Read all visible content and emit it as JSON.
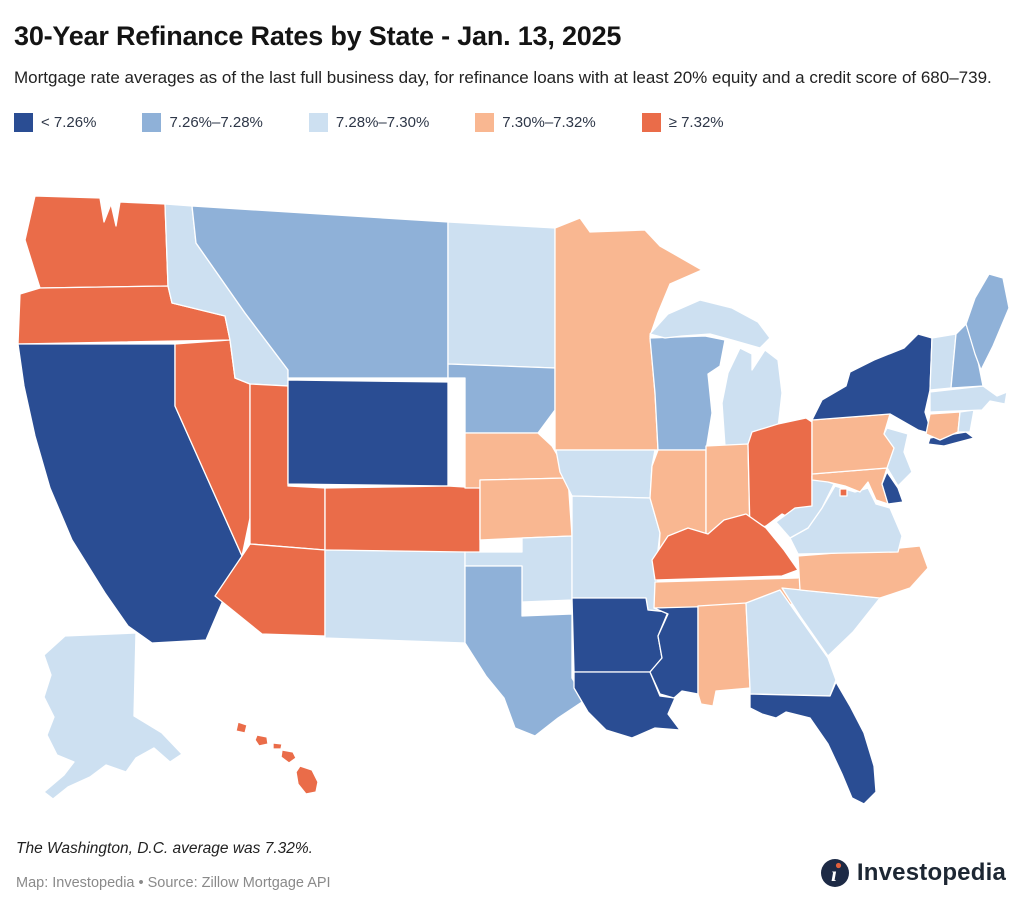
{
  "header": {
    "title": "30-Year Refinance Rates by State - Jan. 13, 2025",
    "subtitle": "Mortgage rate averages as of the last full business day, for refinance loans with at least 20% equity and a credit score of 680–739."
  },
  "legend": {
    "items": [
      {
        "label": "< 7.26%",
        "color": "#2a4d93"
      },
      {
        "label": "7.26%–7.28%",
        "color": "#8fb1d8"
      },
      {
        "label": "7.28%–7.30%",
        "color": "#cde0f1"
      },
      {
        "label": "7.30%–7.32%",
        "color": "#f9b791"
      },
      {
        "label": "≥ 7.32%",
        "color": "#ea6c49"
      }
    ]
  },
  "chart_data": {
    "type": "choropleth",
    "title": "30-Year Refinance Rates by State - Jan. 13, 2025",
    "date_label": "Jan. 13, 2025",
    "metric": "30-year refinance mortgage rate average",
    "unit": "percent",
    "bins": [
      {
        "label": "< 7.26%",
        "color": "#2a4d93"
      },
      {
        "label": "7.26%–7.28%",
        "color": "#8fb1d8"
      },
      {
        "label": "7.28%–7.30%",
        "color": "#cde0f1"
      },
      {
        "label": "7.30%–7.32%",
        "color": "#f9b791"
      },
      {
        "label": "≥ 7.32%",
        "color": "#ea6c49"
      }
    ],
    "states": [
      {
        "id": "WA",
        "name": "Washington",
        "cat": 4
      },
      {
        "id": "OR",
        "name": "Oregon",
        "cat": 4
      },
      {
        "id": "CA",
        "name": "California",
        "cat": 0
      },
      {
        "id": "NV",
        "name": "Nevada",
        "cat": 4
      },
      {
        "id": "ID",
        "name": "Idaho",
        "cat": 2
      },
      {
        "id": "UT",
        "name": "Utah",
        "cat": 4
      },
      {
        "id": "AZ",
        "name": "Arizona",
        "cat": 4
      },
      {
        "id": "MT",
        "name": "Montana",
        "cat": 1
      },
      {
        "id": "WY",
        "name": "Wyoming",
        "cat": 0
      },
      {
        "id": "CO",
        "name": "Colorado",
        "cat": 4
      },
      {
        "id": "NM",
        "name": "New Mexico",
        "cat": 2
      },
      {
        "id": "ND",
        "name": "North Dakota",
        "cat": 2
      },
      {
        "id": "SD",
        "name": "South Dakota",
        "cat": 1
      },
      {
        "id": "NE",
        "name": "Nebraska",
        "cat": 3
      },
      {
        "id": "KS",
        "name": "Kansas",
        "cat": 3
      },
      {
        "id": "OK",
        "name": "Oklahoma",
        "cat": 2
      },
      {
        "id": "TX",
        "name": "Texas",
        "cat": 1
      },
      {
        "id": "MN",
        "name": "Minnesota",
        "cat": 3
      },
      {
        "id": "IA",
        "name": "Iowa",
        "cat": 2
      },
      {
        "id": "MO",
        "name": "Missouri",
        "cat": 2
      },
      {
        "id": "AR",
        "name": "Arkansas",
        "cat": 0
      },
      {
        "id": "LA",
        "name": "Louisiana",
        "cat": 0
      },
      {
        "id": "WI",
        "name": "Wisconsin",
        "cat": 1
      },
      {
        "id": "IL",
        "name": "Illinois",
        "cat": 3
      },
      {
        "id": "MS",
        "name": "Mississippi",
        "cat": 0
      },
      {
        "id": "MIUP",
        "name": "Michigan (Upper Peninsula)",
        "cat": 2
      },
      {
        "id": "MI",
        "name": "Michigan",
        "cat": 2
      },
      {
        "id": "IN",
        "name": "Indiana",
        "cat": 3
      },
      {
        "id": "OH",
        "name": "Ohio",
        "cat": 4
      },
      {
        "id": "KY",
        "name": "Kentucky",
        "cat": 4
      },
      {
        "id": "TN",
        "name": "Tennessee",
        "cat": 3
      },
      {
        "id": "AL",
        "name": "Alabama",
        "cat": 3
      },
      {
        "id": "GA",
        "name": "Georgia",
        "cat": 2
      },
      {
        "id": "FL",
        "name": "Florida",
        "cat": 0
      },
      {
        "id": "SC",
        "name": "South Carolina",
        "cat": 2
      },
      {
        "id": "NC",
        "name": "North Carolina",
        "cat": 3
      },
      {
        "id": "VA",
        "name": "Virginia",
        "cat": 2
      },
      {
        "id": "WV",
        "name": "West Virginia",
        "cat": 2
      },
      {
        "id": "MD",
        "name": "Maryland",
        "cat": 3
      },
      {
        "id": "DE",
        "name": "Delaware",
        "cat": 0
      },
      {
        "id": "NJ",
        "name": "New Jersey",
        "cat": 2
      },
      {
        "id": "PA",
        "name": "Pennsylvania",
        "cat": 3
      },
      {
        "id": "NY",
        "name": "New York",
        "cat": 0
      },
      {
        "id": "LI",
        "name": "New York (Long Island)",
        "cat": 0
      },
      {
        "id": "CT",
        "name": "Connecticut",
        "cat": 3
      },
      {
        "id": "RI",
        "name": "Rhode Island",
        "cat": 2
      },
      {
        "id": "MA",
        "name": "Massachusetts",
        "cat": 2
      },
      {
        "id": "VT",
        "name": "Vermont",
        "cat": 2
      },
      {
        "id": "NH",
        "name": "New Hampshire",
        "cat": 1
      },
      {
        "id": "ME",
        "name": "Maine",
        "cat": 1
      },
      {
        "id": "AK",
        "name": "Alaska",
        "cat": 2
      },
      {
        "id": "HI1",
        "name": "Hawaii (Kauai)",
        "cat": 4
      },
      {
        "id": "HI2",
        "name": "Hawaii (Oahu)",
        "cat": 4
      },
      {
        "id": "HI3",
        "name": "Hawaii (Molokai)",
        "cat": 4
      },
      {
        "id": "HI4",
        "name": "Hawaii (Maui)",
        "cat": 4
      },
      {
        "id": "HI5",
        "name": "Hawaii (Big Island)",
        "cat": 4
      },
      {
        "id": "DC",
        "name": "Washington, D.C.",
        "cat": 4
      }
    ],
    "annotation": "The Washington, D.C. average was 7.32%."
  },
  "footer": {
    "note": "The Washington, D.C. average was 7.32%.",
    "source": "Map: Investopedia • Source: Zillow Mortgage API",
    "brand": "Investopedia"
  }
}
